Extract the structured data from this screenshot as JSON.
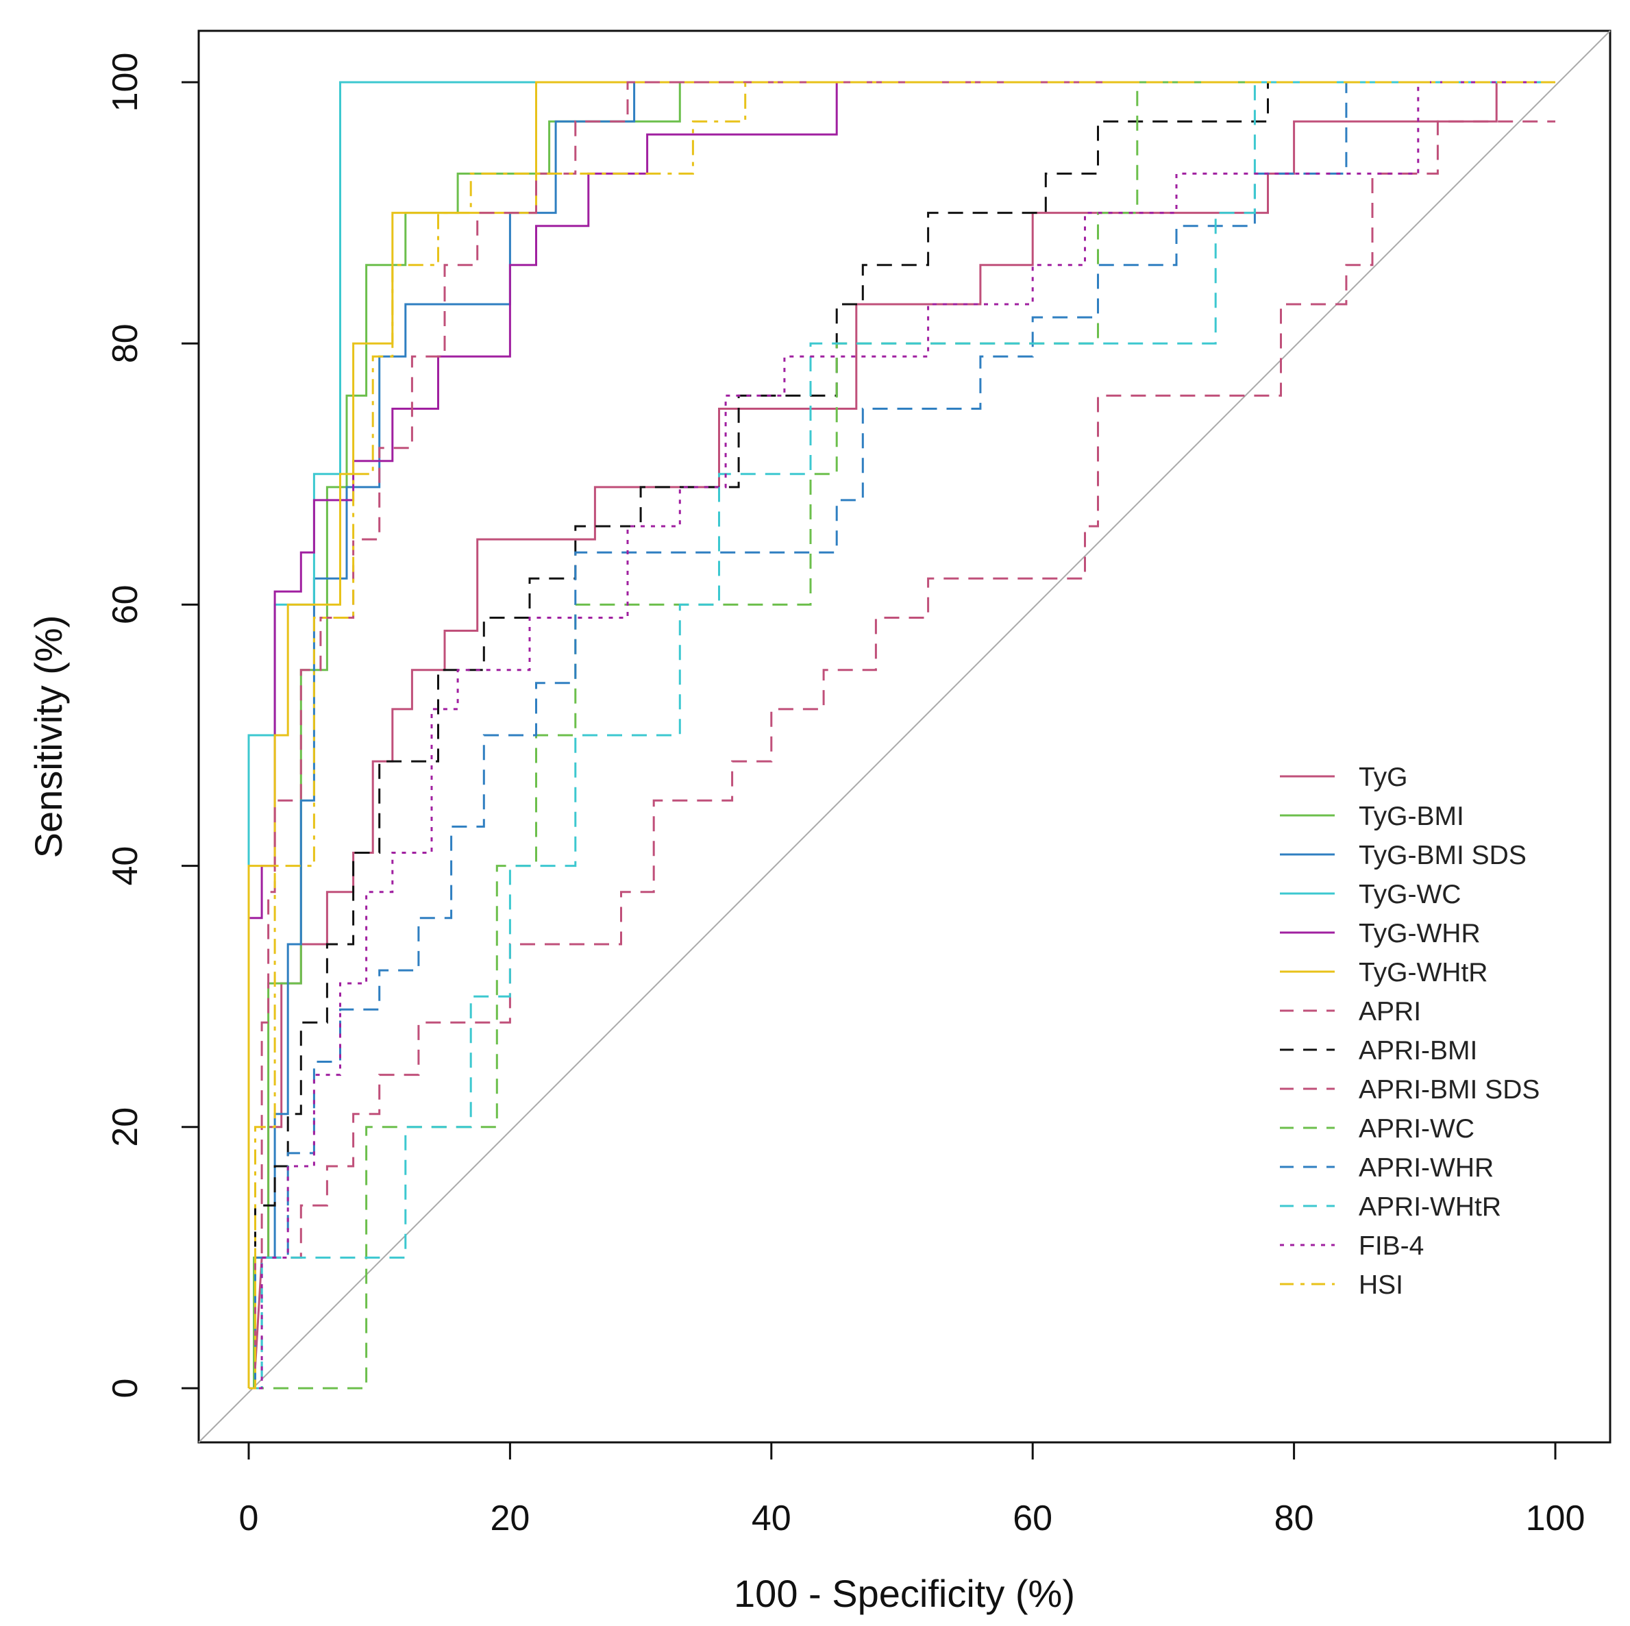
{
  "chart_data": {
    "type": "line",
    "title": "",
    "xlabel": "100 - Specificity (%)",
    "ylabel": "Sensitivity (%)",
    "xlim": [
      0,
      100
    ],
    "ylim": [
      0,
      100
    ],
    "xticks": [
      "0",
      "20",
      "40",
      "60",
      "80",
      "100"
    ],
    "yticks": [
      "0",
      "20",
      "40",
      "60",
      "80",
      "100"
    ],
    "grid": false,
    "legend_position": "bottom-right",
    "reference_line": {
      "from": [
        0,
        0
      ],
      "to": [
        100,
        100
      ],
      "color": "#aaaaaa"
    },
    "series": [
      {
        "name": "TyG",
        "color": "#c0507a",
        "dash": "solid",
        "x": [
          0,
          0.4,
          1,
          1.5,
          1.5,
          2.5,
          2.5,
          4,
          4,
          6,
          6,
          8,
          8,
          9.5,
          9.5,
          11,
          11,
          12.5,
          12.5,
          15,
          15,
          17.5,
          17.5,
          26.5,
          26.5,
          36,
          36,
          46.5,
          46.5,
          56,
          56,
          60,
          60,
          78,
          78,
          80,
          80,
          95.5,
          95.5,
          100
        ],
        "y": [
          0,
          0,
          10,
          10,
          20,
          20,
          31,
          31,
          34,
          34,
          38,
          38,
          41,
          41,
          48,
          48,
          52,
          52,
          55,
          55,
          58,
          58,
          65,
          65,
          69,
          69,
          75,
          75,
          83,
          83,
          86,
          86,
          90,
          90,
          93,
          93,
          97,
          97,
          100,
          100
        ]
      },
      {
        "name": "TyG-BMI",
        "color": "#6cbf4c",
        "dash": "solid",
        "x": [
          0,
          0.4,
          0.4,
          1.5,
          1.5,
          4,
          4,
          6,
          6,
          7.5,
          7.5,
          9,
          9,
          12,
          12,
          16,
          16,
          23,
          23,
          25,
          25,
          33,
          33,
          100
        ],
        "y": [
          0,
          0,
          10,
          10,
          31,
          31,
          55,
          55,
          69,
          69,
          76,
          76,
          86,
          86,
          90,
          90,
          93,
          93,
          97,
          97,
          97,
          97,
          100,
          100
        ]
      },
      {
        "name": "TyG-BMI SDS",
        "color": "#2f7fc1",
        "dash": "solid",
        "x": [
          0,
          0.5,
          0.5,
          2,
          2,
          3,
          3,
          4,
          4,
          5,
          5,
          7.5,
          7.5,
          10,
          10,
          12,
          12,
          20,
          20,
          23.5,
          23.5,
          29.5,
          29.5,
          100
        ],
        "y": [
          0,
          0,
          10,
          10,
          21,
          21,
          34,
          34,
          45,
          45,
          62,
          62,
          69,
          69,
          79,
          79,
          83,
          83,
          90,
          90,
          97,
          97,
          100,
          100
        ]
      },
      {
        "name": "TyG-WC",
        "color": "#3dc8d0",
        "dash": "solid",
        "x": [
          0,
          0,
          2,
          2,
          5,
          5,
          7,
          7,
          100
        ],
        "y": [
          0,
          50,
          50,
          60,
          60,
          70,
          70,
          100,
          100
        ]
      },
      {
        "name": "TyG-WHR",
        "color": "#a020a0",
        "dash": "solid",
        "x": [
          0,
          0,
          1,
          1,
          2,
          2,
          4,
          4,
          5,
          5,
          8,
          8,
          11,
          11,
          14.5,
          14.5,
          20,
          20,
          22,
          22,
          26,
          26,
          30.5,
          30.5,
          45,
          45,
          100
        ],
        "y": [
          0,
          36,
          36,
          40,
          40,
          61,
          61,
          64,
          64,
          68,
          68,
          71,
          71,
          75,
          75,
          79,
          79,
          86,
          86,
          89,
          89,
          93,
          93,
          96,
          96,
          100,
          100
        ]
      },
      {
        "name": "TyG-WHtR",
        "color": "#e8c21a",
        "dash": "solid",
        "x": [
          0,
          0,
          2,
          2,
          3,
          3,
          7,
          7,
          8,
          8,
          11,
          11,
          22,
          22,
          100
        ],
        "y": [
          0,
          40,
          40,
          50,
          50,
          60,
          60,
          70,
          70,
          80,
          80,
          90,
          90,
          100,
          100
        ]
      },
      {
        "name": "APRI",
        "color": "#c0507a",
        "dash": "dashed",
        "x": [
          0,
          0.5,
          0.5,
          1,
          1,
          1.5,
          1.5,
          2,
          2,
          4,
          4,
          5.5,
          5.5,
          8,
          8,
          10,
          10,
          12.5,
          12.5,
          15,
          15,
          17.5,
          17.5,
          20,
          20,
          22,
          22,
          25,
          25,
          29,
          29,
          32.5,
          32.5,
          37,
          37,
          100
        ],
        "y": [
          0,
          0,
          10,
          10,
          28,
          28,
          38,
          38,
          45,
          45,
          55,
          55,
          59,
          59,
          65,
          65,
          72,
          72,
          79,
          79,
          86,
          86,
          90,
          90,
          90,
          90,
          93,
          93,
          97,
          97,
          100,
          100,
          100,
          100,
          100,
          100
        ]
      },
      {
        "name": "APRI-BMI",
        "color": "#111111",
        "dash": "dashed",
        "x": [
          0,
          0.5,
          0.5,
          2,
          2,
          3,
          3,
          4,
          4,
          6,
          6,
          8,
          8,
          10,
          10,
          14.5,
          14.5,
          18,
          18,
          21.5,
          21.5,
          25,
          25,
          30,
          30,
          37.5,
          37.5,
          45,
          45,
          47,
          47,
          52,
          52,
          61,
          61,
          65,
          65,
          78,
          78,
          100
        ],
        "y": [
          0,
          0,
          14,
          14,
          17,
          17,
          21,
          21,
          28,
          28,
          34,
          34,
          41,
          41,
          48,
          48,
          55,
          55,
          59,
          59,
          62,
          62,
          66,
          66,
          69,
          69,
          76,
          76,
          83,
          83,
          86,
          86,
          90,
          90,
          93,
          93,
          97,
          97,
          100,
          100
        ]
      },
      {
        "name": "APRI-BMI SDS",
        "color": "#c0507a",
        "dash": "dashed",
        "x": [
          0,
          0.5,
          0.5,
          4,
          4,
          6,
          6,
          8,
          8,
          10,
          10,
          13,
          13,
          20,
          20,
          28.5,
          28.5,
          31,
          31,
          37,
          37,
          40,
          40,
          44,
          44,
          48,
          48,
          52,
          52,
          64,
          64,
          65,
          65,
          79,
          79,
          84,
          84,
          86,
          86,
          91,
          91,
          100
        ],
        "y": [
          0,
          0,
          10,
          10,
          14,
          14,
          17,
          17,
          21,
          21,
          24,
          24,
          28,
          28,
          34,
          34,
          38,
          38,
          45,
          45,
          48,
          48,
          52,
          52,
          55,
          55,
          59,
          59,
          62,
          62,
          66,
          66,
          76,
          76,
          83,
          83,
          86,
          86,
          93,
          93,
          97,
          97
        ]
      },
      {
        "name": "APRI-WC",
        "color": "#6cbf4c",
        "dash": "dashed",
        "x": [
          0,
          9,
          9,
          19,
          19,
          22,
          22,
          25,
          25,
          43,
          43,
          45,
          45,
          65,
          65,
          68,
          68,
          100
        ],
        "y": [
          0,
          0,
          20,
          20,
          40,
          40,
          50,
          50,
          60,
          60,
          70,
          70,
          80,
          80,
          90,
          90,
          100,
          100
        ]
      },
      {
        "name": "APRI-WHR",
        "color": "#2f7fc1",
        "dash": "dashed",
        "x": [
          0,
          1,
          1,
          3,
          3,
          5,
          5,
          7,
          7,
          10,
          10,
          13,
          13,
          15.5,
          15.5,
          18,
          18,
          22,
          22,
          25,
          25,
          45,
          45,
          47,
          47,
          56,
          56,
          60,
          60,
          65,
          65,
          71,
          71,
          77,
          77,
          84,
          84,
          100
        ],
        "y": [
          0,
          0,
          10,
          10,
          18,
          18,
          25,
          25,
          29,
          29,
          32,
          32,
          36,
          36,
          43,
          43,
          50,
          50,
          54,
          54,
          64,
          64,
          68,
          68,
          75,
          75,
          79,
          79,
          82,
          82,
          86,
          86,
          89,
          89,
          93,
          93,
          100,
          100
        ]
      },
      {
        "name": "APRI-WHtR",
        "color": "#3dc8d0",
        "dash": "dashed",
        "x": [
          0,
          1,
          1,
          12,
          12,
          17,
          17,
          20,
          20,
          25,
          25,
          33,
          33,
          36,
          36,
          43,
          43,
          74,
          74,
          77,
          77,
          100
        ],
        "y": [
          0,
          0,
          10,
          10,
          20,
          20,
          30,
          30,
          40,
          40,
          50,
          50,
          60,
          60,
          70,
          70,
          80,
          80,
          90,
          90,
          100,
          100
        ]
      },
      {
        "name": "FIB-4",
        "color": "#a020a0",
        "dash": "dotted",
        "x": [
          0,
          1,
          1,
          3,
          3,
          5,
          5,
          7,
          7,
          9,
          9,
          11,
          11,
          14,
          14,
          16,
          16,
          21.5,
          21.5,
          29,
          29,
          33,
          33,
          36.5,
          36.5,
          41,
          41,
          52,
          52,
          60,
          60,
          64,
          64,
          71,
          71,
          89.5,
          89.5,
          100
        ],
        "y": [
          0,
          0,
          10,
          10,
          17,
          17,
          24,
          24,
          31,
          31,
          38,
          38,
          41,
          41,
          52,
          52,
          55,
          55,
          59,
          59,
          66,
          66,
          69,
          69,
          76,
          76,
          79,
          79,
          83,
          83,
          86,
          86,
          90,
          90,
          93,
          93,
          100,
          100
        ]
      },
      {
        "name": "HSI",
        "color": "#e8c21a",
        "dash": "dashdot",
        "x": [
          0,
          0.5,
          0.5,
          2,
          2,
          5,
          5,
          8,
          8,
          9.5,
          9.5,
          11,
          11,
          14.5,
          14.5,
          17,
          17,
          28,
          28,
          34,
          34,
          38,
          38,
          100
        ],
        "y": [
          0,
          0,
          20,
          20,
          40,
          40,
          59,
          59,
          70,
          70,
          79,
          79,
          86,
          86,
          90,
          90,
          93,
          93,
          93,
          93,
          97,
          97,
          100,
          100
        ]
      }
    ]
  }
}
